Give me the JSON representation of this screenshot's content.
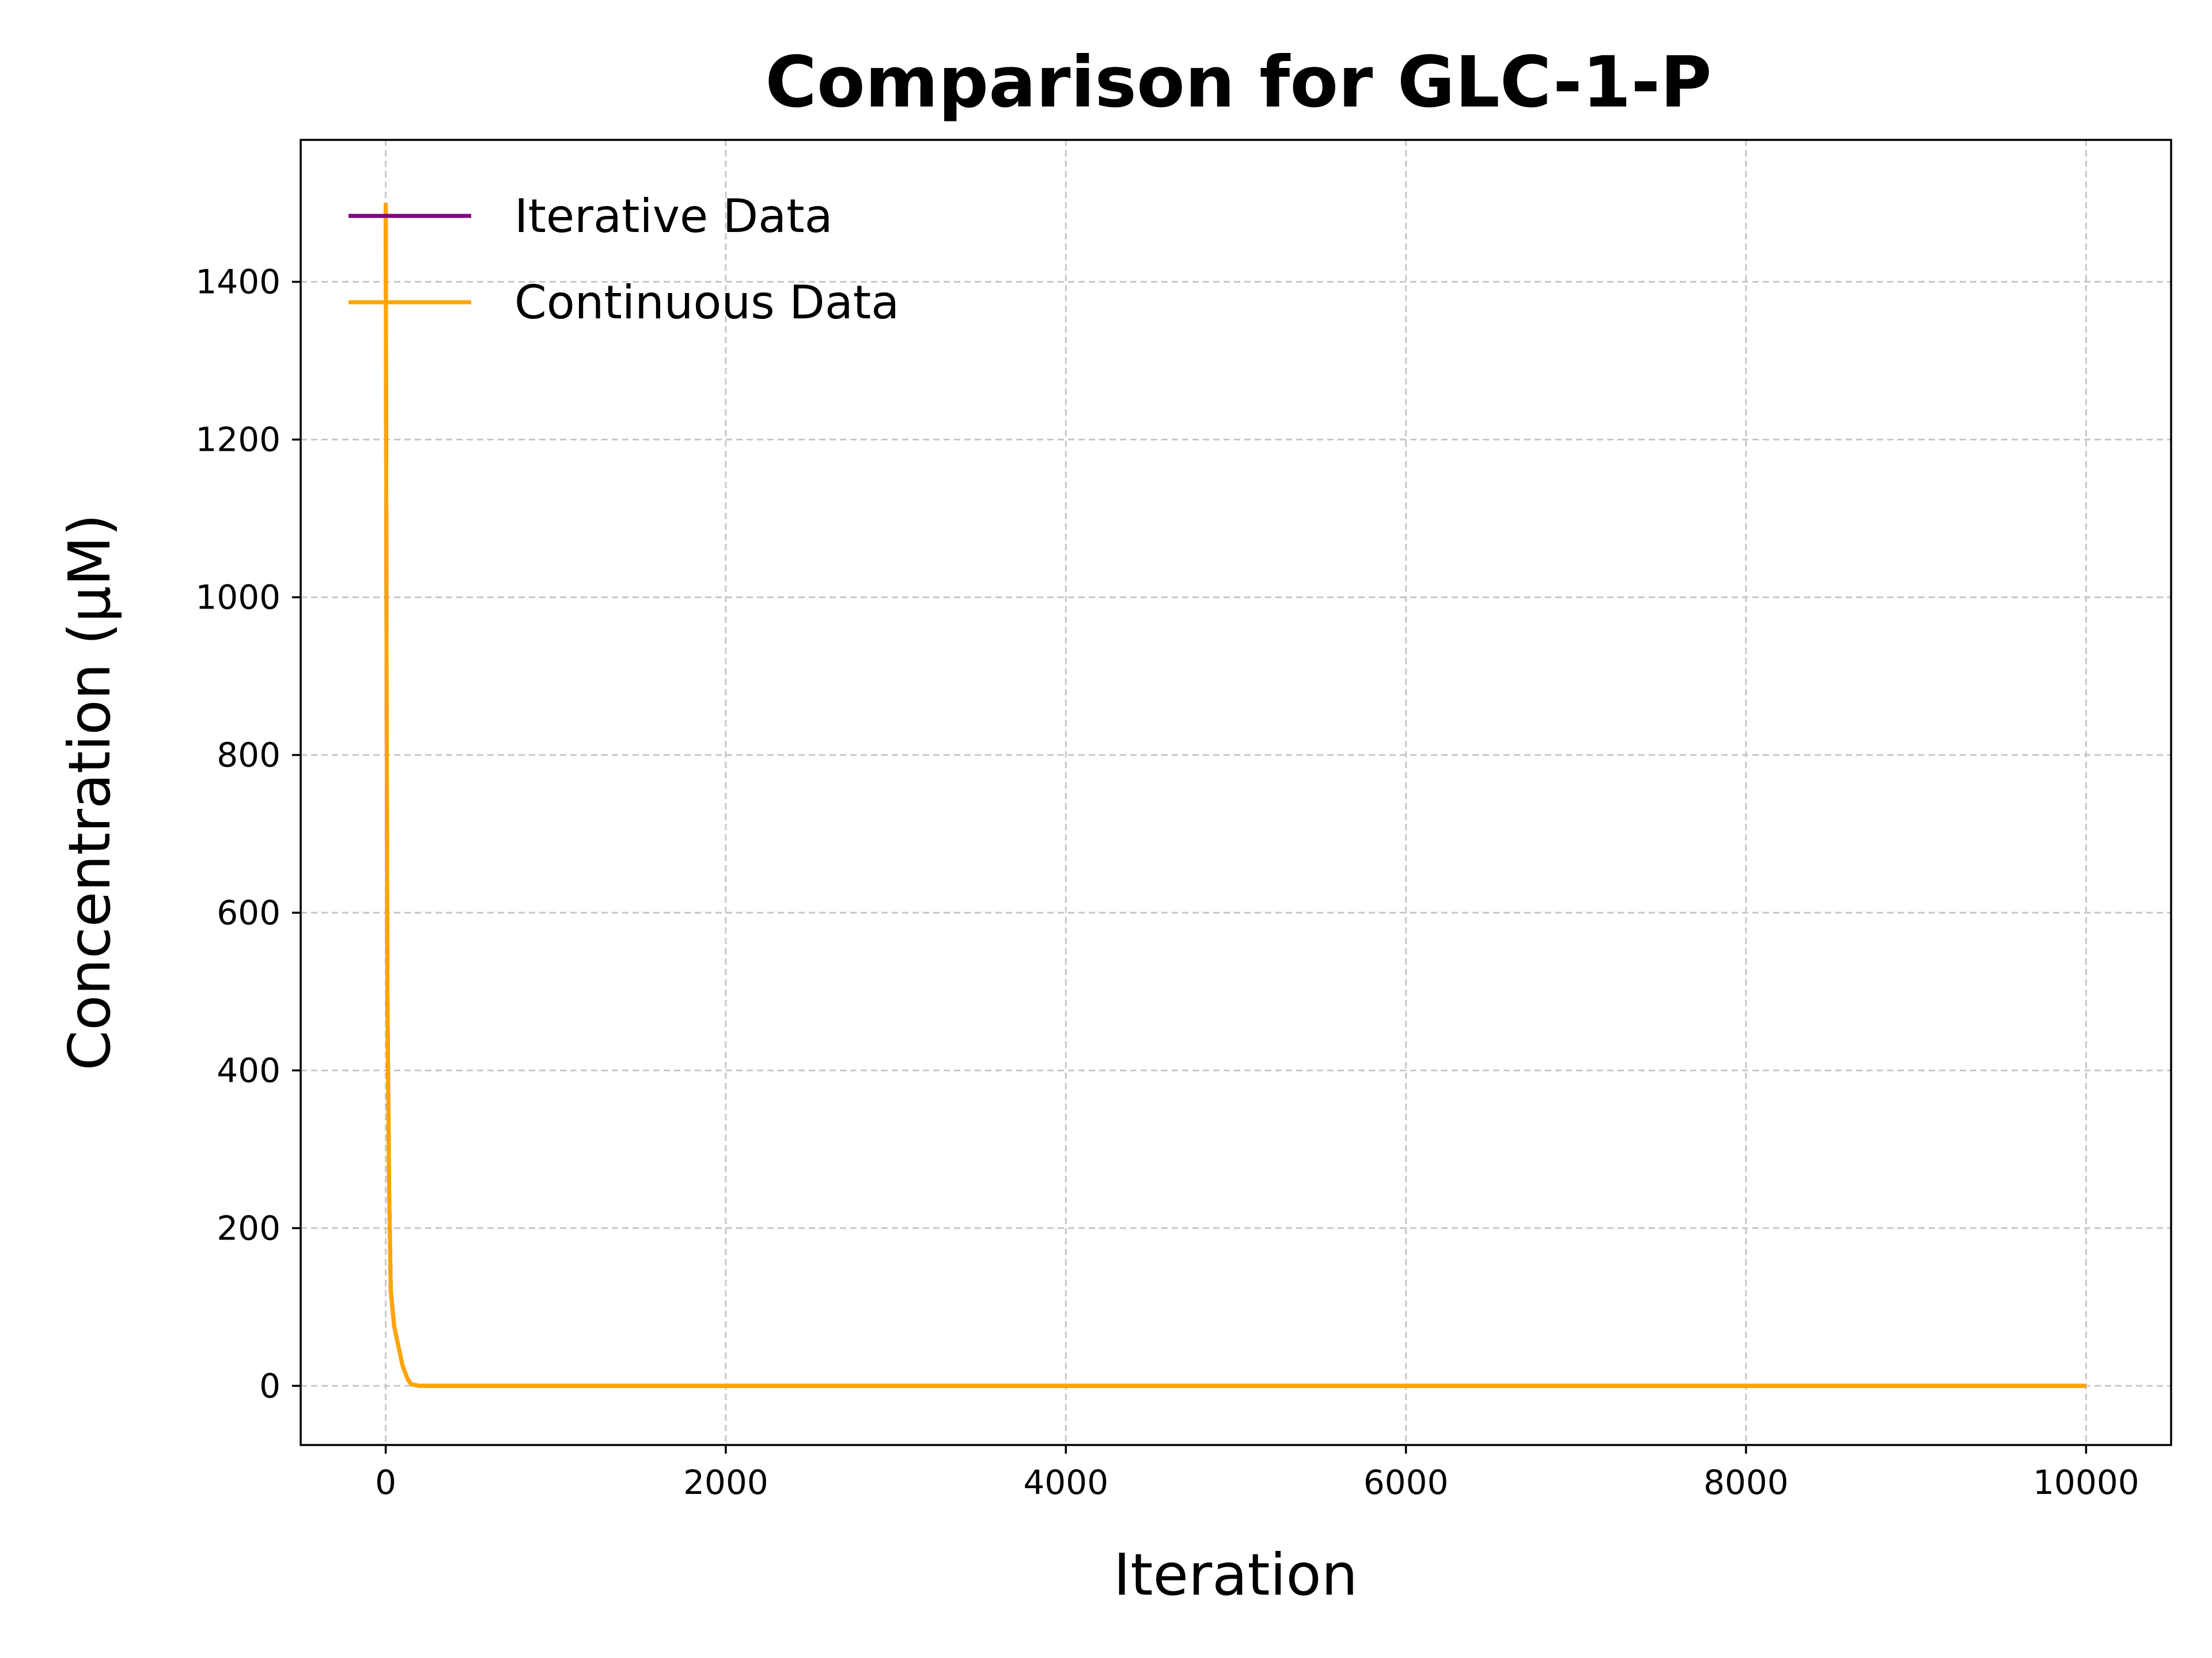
{
  "chart_data": {
    "type": "line",
    "title": "Comparison for GLC-1-P",
    "xlabel": "Iteration",
    "ylabel": "Concentration (μM)",
    "xlim": [
      -500,
      10500
    ],
    "ylim": [
      -75,
      1580
    ],
    "xticks": [
      0,
      2000,
      4000,
      6000,
      8000,
      10000
    ],
    "xtick_labels": [
      "0",
      "2000",
      "4000",
      "6000",
      "8000",
      "10000"
    ],
    "yticks": [
      0,
      200,
      400,
      600,
      800,
      1000,
      1200,
      1400
    ],
    "ytick_labels": [
      "0",
      "200",
      "400",
      "600",
      "800",
      "1000",
      "1200",
      "1400"
    ],
    "grid": true,
    "legend_position": "upper-left",
    "series": [
      {
        "name": "Iterative Data",
        "color": "#800080",
        "x": [
          0,
          5,
          10,
          20,
          30,
          50,
          80,
          100,
          130,
          150,
          200,
          500,
          1000,
          2000,
          4000,
          6000,
          8000,
          10000
        ],
        "y": [
          1500,
          900,
          500,
          250,
          120,
          75,
          45,
          25,
          8,
          2,
          0,
          0,
          0,
          0,
          0,
          0,
          0,
          0
        ]
      },
      {
        "name": "Continuous Data",
        "color": "#FFA500",
        "x": [
          0,
          5,
          10,
          20,
          30,
          50,
          80,
          100,
          130,
          150,
          200,
          500,
          1000,
          2000,
          4000,
          6000,
          8000,
          10000
        ],
        "y": [
          1500,
          900,
          500,
          250,
          120,
          75,
          45,
          25,
          8,
          2,
          0,
          0,
          0,
          0,
          0,
          0,
          0,
          0
        ]
      }
    ]
  }
}
